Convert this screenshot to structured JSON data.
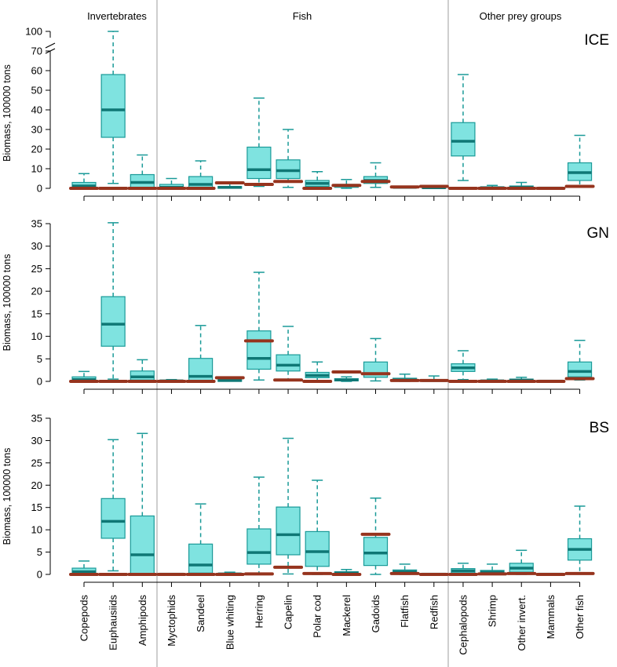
{
  "group_labels": [
    "Invertebrates",
    "Fish",
    "Other prey groups"
  ],
  "categories": [
    "Copepods",
    "Euphausiids",
    "Amphipods",
    "Myctophids",
    "Sandeel",
    "Blue whiting",
    "Herring",
    "Capelin",
    "Polar cod",
    "Mackerel",
    "Gadoids",
    "Flatfish",
    "Redfish",
    "Cephalopods",
    "Shrimp",
    "Other invert.",
    "Mammals",
    "Other fish"
  ],
  "colors": {
    "box_fill": "#7fe3e0",
    "box_stroke": "#1a9a98",
    "median": "#0f7775",
    "observed": "#96341e",
    "separator": "#bdbdbd",
    "axis": "#000000"
  },
  "chart_data": [
    {
      "type": "box",
      "panel_label": "ICE",
      "ylabel": "Biomass, 100000 tons",
      "y_ticks": [
        "0",
        "10",
        "20",
        "30",
        "40",
        "50",
        "60",
        "70",
        "100"
      ],
      "axis_break": [
        70,
        100
      ],
      "ylim": [
        0,
        100
      ],
      "boxes": [
        {
          "category": "Copepods",
          "min": 0,
          "q1": 0.4,
          "median": 1.2,
          "q3": 3,
          "max": 7.5,
          "observed": 0
        },
        {
          "category": "Euphausiids",
          "min": 2.5,
          "q1": 26,
          "median": 40,
          "q3": 58,
          "max": 100,
          "observed": 0
        },
        {
          "category": "Amphipods",
          "min": 0,
          "q1": 0.5,
          "median": 3,
          "q3": 7,
          "max": 17,
          "observed": 0
        },
        {
          "category": "Myctophids",
          "min": 0,
          "q1": 0,
          "median": 0.5,
          "q3": 2,
          "max": 5,
          "observed": 0
        },
        {
          "category": "Sandeel",
          "min": 0,
          "q1": 0.5,
          "median": 2,
          "q3": 6,
          "max": 14,
          "observed": 0
        },
        {
          "category": "Blue whiting",
          "min": 0,
          "q1": 0,
          "median": 0.5,
          "q3": 1,
          "max": 2.8,
          "observed": 2.8
        },
        {
          "category": "Herring",
          "min": 1,
          "q1": 5,
          "median": 9.5,
          "q3": 21,
          "max": 46,
          "observed": 2
        },
        {
          "category": "Capelin",
          "min": 0.5,
          "q1": 5,
          "median": 9,
          "q3": 14.5,
          "max": 30,
          "observed": 3.5
        },
        {
          "category": "Polar cod",
          "min": 0,
          "q1": 1,
          "median": 2.5,
          "q3": 4,
          "max": 8.5,
          "observed": 0
        },
        {
          "category": "Mackerel",
          "min": 0,
          "q1": 0.5,
          "median": 1.5,
          "q3": 2,
          "max": 4.5,
          "observed": 1.5
        },
        {
          "category": "Gadoids",
          "min": 0.5,
          "q1": 2.5,
          "median": 4,
          "q3": 6,
          "max": 13,
          "observed": 3.5
        },
        {
          "category": "Flatfish",
          "min": 0,
          "q1": 0.2,
          "median": 0.5,
          "q3": 1,
          "max": 1.2,
          "observed": 0.7
        },
        {
          "category": "Redfish",
          "min": 0,
          "q1": 0,
          "median": 0.3,
          "q3": 0.6,
          "max": 1,
          "observed": 1
        },
        {
          "category": "Cephalopods",
          "min": 4,
          "q1": 16.5,
          "median": 24,
          "q3": 33.5,
          "max": 58,
          "observed": 0
        },
        {
          "category": "Shrimp",
          "min": 0,
          "q1": 0,
          "median": 0.3,
          "q3": 0.8,
          "max": 1.5,
          "observed": 0
        },
        {
          "category": "Other invert.",
          "min": 0,
          "q1": 0.2,
          "median": 0.5,
          "q3": 1.2,
          "max": 3,
          "observed": 0
        },
        {
          "category": "Mammals",
          "min": 0,
          "q1": 0,
          "median": 0.1,
          "q3": 0.3,
          "max": 0.5,
          "observed": 0
        },
        {
          "category": "Other fish",
          "min": 1,
          "q1": 4,
          "median": 8,
          "q3": 13,
          "max": 27,
          "observed": 1
        }
      ]
    },
    {
      "type": "box",
      "panel_label": "GN",
      "ylabel": "Biomass, 100000 tons",
      "y_ticks": [
        "0",
        "5",
        "10",
        "15",
        "20",
        "25",
        "30",
        "35"
      ],
      "ylim": [
        0,
        35
      ],
      "boxes": [
        {
          "category": "Copepods",
          "min": 0,
          "q1": 0.1,
          "median": 0.4,
          "q3": 1,
          "max": 2.2,
          "observed": 0
        },
        {
          "category": "Euphausiids",
          "min": 0.5,
          "q1": 7.8,
          "median": 12.7,
          "q3": 18.8,
          "max": 35.2,
          "observed": 0
        },
        {
          "category": "Amphipods",
          "min": 0,
          "q1": 0.3,
          "median": 1,
          "q3": 2.3,
          "max": 4.8,
          "observed": 0
        },
        {
          "category": "Myctophids",
          "min": 0,
          "q1": 0,
          "median": 0.1,
          "q3": 0.2,
          "max": 0.4,
          "observed": 0
        },
        {
          "category": "Sandeel",
          "min": 0,
          "q1": 0.1,
          "median": 1.1,
          "q3": 5.1,
          "max": 12.4,
          "observed": 0
        },
        {
          "category": "Blue whiting",
          "min": 0,
          "q1": 0,
          "median": 0.2,
          "q3": 0.5,
          "max": 0.8,
          "observed": 0.8
        },
        {
          "category": "Herring",
          "min": 0.3,
          "q1": 2.7,
          "median": 5.1,
          "q3": 11.2,
          "max": 24.2,
          "observed": 9
        },
        {
          "category": "Capelin",
          "min": 0.2,
          "q1": 2.3,
          "median": 3.6,
          "q3": 5.9,
          "max": 12.2,
          "observed": 0.3
        },
        {
          "category": "Polar cod",
          "min": 0,
          "q1": 0.8,
          "median": 1.3,
          "q3": 2,
          "max": 4.3,
          "observed": 0
        },
        {
          "category": "Mackerel",
          "min": 0,
          "q1": 0.1,
          "median": 0.3,
          "q3": 0.6,
          "max": 1,
          "observed": 2.1
        },
        {
          "category": "Gadoids",
          "min": 0.1,
          "q1": 0.9,
          "median": 1.7,
          "q3": 4.3,
          "max": 9.5,
          "observed": 1.7
        },
        {
          "category": "Flatfish",
          "min": 0,
          "q1": 0.1,
          "median": 0.3,
          "q3": 0.7,
          "max": 1.6,
          "observed": 0.2
        },
        {
          "category": "Redfish",
          "min": 0,
          "q1": 0,
          "median": 0.2,
          "q3": 0.4,
          "max": 1.2,
          "observed": 0.2
        },
        {
          "category": "Cephalopods",
          "min": 0.4,
          "q1": 2.2,
          "median": 3,
          "q3": 3.9,
          "max": 6.8,
          "observed": 0
        },
        {
          "category": "Shrimp",
          "min": 0,
          "q1": 0,
          "median": 0.1,
          "q3": 0.2,
          "max": 0.5,
          "observed": 0
        },
        {
          "category": "Other invert.",
          "min": 0,
          "q1": 0.1,
          "median": 0.3,
          "q3": 0.5,
          "max": 0.9,
          "observed": 0
        },
        {
          "category": "Mammals",
          "min": 0,
          "q1": 0,
          "median": 0.05,
          "q3": 0.1,
          "max": 0.2,
          "observed": 0
        },
        {
          "category": "Other fish",
          "min": 0.3,
          "q1": 1,
          "median": 2.2,
          "q3": 4.3,
          "max": 9.1,
          "observed": 0.6
        }
      ]
    },
    {
      "type": "box",
      "panel_label": "BS",
      "ylabel": "Biomass, 100000 tons",
      "y_ticks": [
        "0",
        "5",
        "10",
        "15",
        "20",
        "25",
        "30",
        "35"
      ],
      "ylim": [
        0,
        35
      ],
      "boxes": [
        {
          "category": "Copepods",
          "min": 0,
          "q1": 0.2,
          "median": 0.6,
          "q3": 1.4,
          "max": 3,
          "observed": 0
        },
        {
          "category": "Euphausiids",
          "min": 0.8,
          "q1": 8.1,
          "median": 11.9,
          "q3": 17,
          "max": 30.2,
          "observed": 0
        },
        {
          "category": "Amphipods",
          "min": 0,
          "q1": 0.2,
          "median": 4.4,
          "q3": 13.1,
          "max": 31.6,
          "observed": 0
        },
        {
          "category": "Myctophids",
          "min": 0,
          "q1": 0,
          "median": 0.05,
          "q3": 0.1,
          "max": 0.2,
          "observed": 0
        },
        {
          "category": "Sandeel",
          "min": 0,
          "q1": 0.3,
          "median": 2.1,
          "q3": 6.8,
          "max": 15.8,
          "observed": 0
        },
        {
          "category": "Blue whiting",
          "min": 0,
          "q1": 0,
          "median": 0.1,
          "q3": 0.2,
          "max": 0.5,
          "observed": 0
        },
        {
          "category": "Herring",
          "min": 0,
          "q1": 2.3,
          "median": 4.9,
          "q3": 10.2,
          "max": 21.8,
          "observed": 0.1
        },
        {
          "category": "Capelin",
          "min": 0.1,
          "q1": 4.4,
          "median": 8.9,
          "q3": 15.1,
          "max": 30.5,
          "observed": 1.6
        },
        {
          "category": "Polar cod",
          "min": 0,
          "q1": 1.8,
          "median": 5.1,
          "q3": 9.6,
          "max": 21.1,
          "observed": 0.2
        },
        {
          "category": "Mackerel",
          "min": 0,
          "q1": 0.1,
          "median": 0.3,
          "q3": 0.6,
          "max": 1.1,
          "observed": 0
        },
        {
          "category": "Gadoids",
          "min": 0,
          "q1": 2,
          "median": 4.8,
          "q3": 8.3,
          "max": 17.1,
          "observed": 9
        },
        {
          "category": "Flatfish",
          "min": 0,
          "q1": 0.3,
          "median": 0.6,
          "q3": 1,
          "max": 2.3,
          "observed": 0.2
        },
        {
          "category": "Redfish",
          "min": 0,
          "q1": 0,
          "median": 0.05,
          "q3": 0.1,
          "max": 0.2,
          "observed": 0
        },
        {
          "category": "Cephalopods",
          "min": 0,
          "q1": 0.3,
          "median": 0.8,
          "q3": 1.3,
          "max": 2.5,
          "observed": 0
        },
        {
          "category": "Shrimp",
          "min": 0,
          "q1": 0.2,
          "median": 0.5,
          "q3": 0.9,
          "max": 2.3,
          "observed": 0.1
        },
        {
          "category": "Other invert.",
          "min": 0,
          "q1": 0.5,
          "median": 1.4,
          "q3": 2.5,
          "max": 5.4,
          "observed": 0.2
        },
        {
          "category": "Mammals",
          "min": 0,
          "q1": 0,
          "median": 0.05,
          "q3": 0.1,
          "max": 0.2,
          "observed": 0
        },
        {
          "category": "Other fish",
          "min": 0.4,
          "q1": 3.2,
          "median": 5.6,
          "q3": 8,
          "max": 15.3,
          "observed": 0.2
        }
      ]
    }
  ]
}
